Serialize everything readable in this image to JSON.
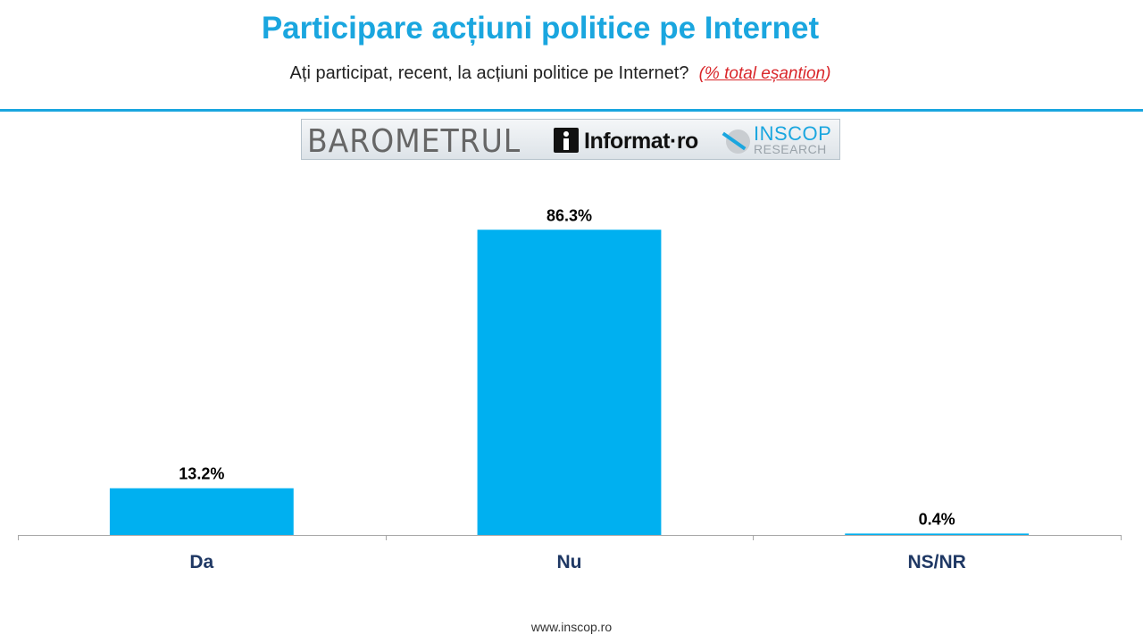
{
  "header": {
    "title": "Participare acțiuni politice pe Internet",
    "subtitle": "Ați participat, recent, la acțiuni politice pe Internet?",
    "note_open": "(",
    "note_text": "% total eșantion",
    "note_close": ")"
  },
  "logo": {
    "barometru": "BAROMETRUL",
    "informat": "Informat·ro",
    "inscop": "INSCOP",
    "research": "RESEARCH"
  },
  "chart_data": {
    "type": "bar",
    "categories": [
      "Da",
      "Nu",
      "NS/NR"
    ],
    "values": [
      13.2,
      86.3,
      0.4
    ],
    "data_labels": [
      "13.2%",
      "86.3%",
      "0.4%"
    ],
    "title": "",
    "xlabel": "",
    "ylabel": "",
    "ylim": [
      0,
      100
    ],
    "grid": false,
    "legend": "none",
    "bar_color": "#00B0F0"
  },
  "footer": {
    "url": "www.inscop.ro"
  },
  "colors": {
    "accent": "#1AA6DF",
    "note": "#D9262A",
    "category_label": "#1F3864"
  }
}
